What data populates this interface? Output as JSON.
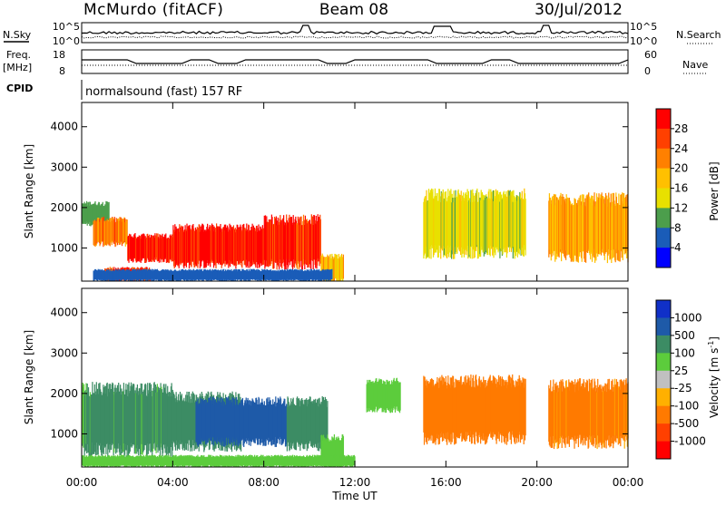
{
  "header": {
    "station": "McMurdo (fitACF)",
    "beam": "Beam 08",
    "date": "30/Jul/2012"
  },
  "top_panels": {
    "nsky_label": "N.Sky",
    "nsky_ticks": [
      "10^5",
      "10^0"
    ],
    "nsearch_label": "N.Search",
    "nsearch_ticks": [
      "10^5",
      "10^0"
    ],
    "freq_label_1": "Freq.",
    "freq_label_2": "[MHz]",
    "freq_ticks": [
      "18",
      "8"
    ],
    "nave_label": "Nave",
    "nave_ticks": [
      "60",
      "0"
    ],
    "cpid_label": "CPID",
    "cpid_text": "normalsound (fast) 157 RF"
  },
  "x_axis": {
    "title": "Time UT",
    "ticks": [
      "00:00",
      "04:00",
      "08:00",
      "12:00",
      "16:00",
      "20:00",
      "00:00"
    ]
  },
  "power_colorbar": {
    "title": "Power [dB]",
    "ticks": [
      "28",
      "24",
      "20",
      "16",
      "12",
      "8",
      "4"
    ],
    "colors": [
      "#ff0000",
      "#ff4000",
      "#ff8000",
      "#ffc000",
      "#e8e000",
      "#4c9e4c",
      "#1a5cb8",
      "#0000ff"
    ]
  },
  "velocity_colorbar": {
    "title_main": "Velocity [m s",
    "title_sup": "-1",
    "title_end": "]",
    "ticks": [
      "1000",
      "500",
      "100",
      "25",
      "-25",
      "-100",
      "-500",
      "-1000"
    ],
    "colors": [
      "#1030c8",
      "#1e5aa8",
      "#3c8c64",
      "#5ccc3c",
      "#c0c0c0",
      "#ffb000",
      "#ff7a00",
      "#ff4000",
      "#ff0000"
    ]
  },
  "chart_data": [
    {
      "type": "heatmap",
      "title": "Power [dB]",
      "xlabel": "Time UT",
      "ylabel": "Slant Range [km]",
      "x_range_hours": [
        0,
        24
      ],
      "ylim": [
        180,
        4600
      ],
      "yticks": [
        "4000",
        "3000",
        "2000",
        "1000"
      ],
      "colorbar_range": [
        0,
        32
      ],
      "patches": [
        {
          "t0": 0.0,
          "t1": 1.2,
          "r0": 1600,
          "r1": 2100,
          "v": 10
        },
        {
          "t0": 0.5,
          "t1": 2.0,
          "r0": 1100,
          "r1": 1700,
          "v": 22
        },
        {
          "t0": 2.0,
          "t1": 4.0,
          "r0": 700,
          "r1": 1300,
          "v": 30
        },
        {
          "t0": 4.0,
          "t1": 8.0,
          "r0": 600,
          "r1": 1500,
          "v": 30
        },
        {
          "t0": 8.0,
          "t1": 10.5,
          "r0": 600,
          "r1": 1700,
          "v": 29
        },
        {
          "t0": 1.0,
          "t1": 3.0,
          "r0": 200,
          "r1": 500,
          "v": 26
        },
        {
          "t0": 10.5,
          "t1": 11.5,
          "r0": 200,
          "r1": 800,
          "v": 18
        },
        {
          "t0": 15.0,
          "t1": 19.5,
          "r0": 900,
          "r1": 2300,
          "v": 14
        },
        {
          "t0": 20.5,
          "t1": 24.0,
          "r0": 800,
          "r1": 2200,
          "v": 20
        },
        {
          "t0": 0.5,
          "t1": 11.0,
          "r0": 200,
          "r1": 450,
          "v": 6
        }
      ]
    },
    {
      "type": "heatmap",
      "title": "Velocity [m s-1]",
      "xlabel": "Time UT",
      "ylabel": "Slant Range [km]",
      "x_range_hours": [
        0,
        24
      ],
      "ylim": [
        180,
        4600
      ],
      "yticks": [
        "4000",
        "3000",
        "2000",
        "1000"
      ],
      "patches": [
        {
          "t0": 0.0,
          "t1": 4.0,
          "r0": 600,
          "r1": 2100,
          "v": 120
        },
        {
          "t0": 4.0,
          "t1": 7.0,
          "r0": 700,
          "r1": 1900,
          "v": 300
        },
        {
          "t0": 5.0,
          "t1": 9.0,
          "r0": 800,
          "r1": 1800,
          "v": 800
        },
        {
          "t0": 9.0,
          "t1": 10.8,
          "r0": 700,
          "r1": 1800,
          "v": 200
        },
        {
          "t0": 10.5,
          "t1": 11.5,
          "r0": 200,
          "r1": 900,
          "v": 60
        },
        {
          "t0": 12.5,
          "t1": 14.0,
          "r0": 1600,
          "r1": 2300,
          "v": 60
        },
        {
          "t0": 15.0,
          "t1": 19.5,
          "r0": 900,
          "r1": 2300,
          "v": -150
        },
        {
          "t0": 20.5,
          "t1": 24.0,
          "r0": 800,
          "r1": 2200,
          "v": -120
        },
        {
          "t0": 0.0,
          "t1": 12.0,
          "r0": 200,
          "r1": 450,
          "v": 40
        }
      ]
    }
  ]
}
